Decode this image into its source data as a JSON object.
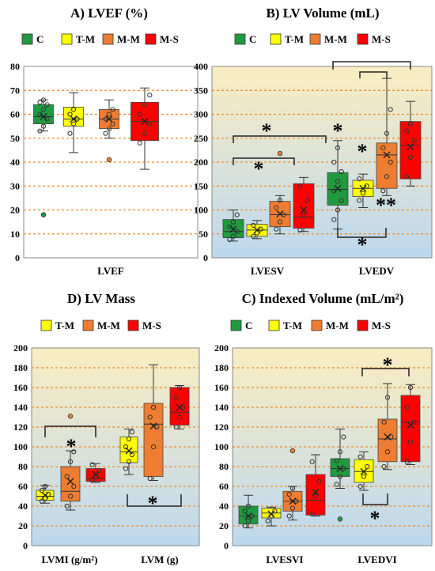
{
  "colors": {
    "C": "#1f9a3f",
    "T-M": "#ffff00",
    "M-M": "#ee7d31",
    "M-S": "#ff0000",
    "gridline": "#f08a24",
    "bracket": "#222222"
  },
  "chart_data": [
    {
      "id": "A",
      "type": "box",
      "title": "A) LVEF (%)",
      "legend": [
        "C",
        "T-M",
        "M-M",
        "M-S"
      ],
      "categories": [
        "LVEF"
      ],
      "ylim": [
        0,
        80
      ],
      "yticks": [
        0,
        10,
        20,
        30,
        40,
        50,
        60,
        70,
        80
      ],
      "background": "white",
      "grid": true,
      "boxes": [
        {
          "cat": 0,
          "group": "C",
          "min": 53,
          "q1": 56,
          "median": 59,
          "q3": 64,
          "max": 66,
          "mean": 59,
          "points": [
            53,
            55,
            58,
            60,
            62,
            64,
            65,
            66
          ],
          "outliers": [
            18
          ]
        },
        {
          "cat": 0,
          "group": "T-M",
          "min": 44,
          "q1": 55,
          "median": 58,
          "q3": 63,
          "max": 69,
          "mean": 58,
          "points": [
            52,
            56,
            58,
            60,
            62
          ],
          "outliers": []
        },
        {
          "cat": 0,
          "group": "M-M",
          "min": 50,
          "q1": 54,
          "median": 58,
          "q3": 62,
          "max": 66,
          "mean": 58,
          "points": [
            52,
            54,
            56,
            58,
            60,
            62
          ],
          "outliers": [
            41
          ]
        },
        {
          "cat": 0,
          "group": "M-S",
          "min": 37,
          "q1": 49,
          "median": 57,
          "q3": 65,
          "max": 71,
          "mean": 57,
          "points": [
            48,
            52,
            56,
            60,
            64,
            68
          ],
          "outliers": []
        }
      ]
    },
    {
      "id": "B",
      "type": "box",
      "title": "B) LV Volume (mL)",
      "legend": [
        "C",
        "T-M",
        "M-M",
        "M-S"
      ],
      "categories": [
        "LVESV",
        "LVEDV"
      ],
      "ylim": [
        0,
        400
      ],
      "yticks": [
        0,
        50,
        100,
        150,
        200,
        250,
        300,
        350,
        400
      ],
      "background": "gradient",
      "grid": true,
      "boxes": [
        {
          "cat": 0,
          "group": "C",
          "min": 35,
          "q1": 42,
          "median": 55,
          "q3": 80,
          "max": 100,
          "mean": 60,
          "points": [
            38,
            45,
            55,
            65,
            75,
            90
          ],
          "outliers": []
        },
        {
          "cat": 0,
          "group": "T-M",
          "min": 40,
          "q1": 45,
          "median": 58,
          "q3": 70,
          "max": 78,
          "mean": 58,
          "points": [
            45,
            52,
            60,
            68
          ],
          "outliers": []
        },
        {
          "cat": 0,
          "group": "M-M",
          "min": 50,
          "q1": 65,
          "median": 90,
          "q3": 118,
          "max": 130,
          "mean": 92,
          "points": [
            60,
            75,
            90,
            105,
            120
          ],
          "outliers": [
            218
          ]
        },
        {
          "cat": 0,
          "group": "M-S",
          "min": 55,
          "q1": 62,
          "median": 85,
          "q3": 155,
          "max": 168,
          "mean": 100,
          "points": [
            58,
            90,
            120,
            150
          ],
          "outliers": []
        },
        {
          "cat": 1,
          "group": "C",
          "min": 60,
          "q1": 110,
          "median": 143,
          "q3": 178,
          "max": 245,
          "mean": 145,
          "points": [
            80,
            100,
            120,
            140,
            160,
            180,
            200,
            230
          ],
          "outliers": []
        },
        {
          "cat": 1,
          "group": "T-M",
          "min": 105,
          "q1": 128,
          "median": 145,
          "q3": 162,
          "max": 175,
          "mean": 145,
          "points": [
            120,
            135,
            150,
            165
          ],
          "outliers": []
        },
        {
          "cat": 1,
          "group": "M-M",
          "min": 130,
          "q1": 145,
          "median": 215,
          "q3": 240,
          "max": 375,
          "mean": 215,
          "points": [
            140,
            170,
            200,
            230,
            260,
            310
          ],
          "outliers": []
        },
        {
          "cat": 1,
          "group": "M-S",
          "min": 150,
          "q1": 165,
          "median": 235,
          "q3": 285,
          "max": 327,
          "mean": 232,
          "points": [
            170,
            210,
            245,
            265,
            280
          ],
          "outliers": []
        }
      ],
      "markers": [
        "*",
        "*",
        "*",
        "*",
        "**",
        "*"
      ]
    },
    {
      "id": "D",
      "type": "box",
      "title": "D) LV Mass",
      "legend": [
        "T-M",
        "M-M",
        "M-S"
      ],
      "categories": [
        "LVMI (g/m²)",
        "LVM (g)"
      ],
      "ylim": [
        0,
        200
      ],
      "yticks": [
        0,
        20,
        40,
        60,
        80,
        100,
        120,
        140,
        160,
        180,
        200
      ],
      "background": "gradient",
      "grid": true,
      "boxes": [
        {
          "cat": 0,
          "group": "T-M",
          "min": 43,
          "q1": 46,
          "median": 50,
          "q3": 56,
          "max": 61,
          "mean": 51,
          "points": [
            45,
            48,
            52,
            56,
            60
          ],
          "outliers": []
        },
        {
          "cat": 0,
          "group": "M-M",
          "min": 36,
          "q1": 45,
          "median": 55,
          "q3": 80,
          "max": 96,
          "mean": 65,
          "points": [
            40,
            50,
            60,
            70,
            85,
            95
          ],
          "outliers": [
            131
          ]
        },
        {
          "cat": 0,
          "group": "M-S",
          "min": 64,
          "q1": 65,
          "median": 68,
          "q3": 78,
          "max": 83,
          "mean": 72,
          "points": [
            66,
            70,
            76,
            82
          ],
          "outliers": []
        },
        {
          "cat": 1,
          "group": "T-M",
          "min": 72,
          "q1": 84,
          "median": 95,
          "q3": 110,
          "max": 118,
          "mean": 96,
          "points": [
            78,
            85,
            92,
            100,
            108,
            115
          ],
          "outliers": []
        },
        {
          "cat": 1,
          "group": "M-M",
          "min": 66,
          "q1": 70,
          "median": 123,
          "q3": 144,
          "max": 183,
          "mean": 121,
          "points": [
            68,
            100,
            120,
            130,
            140
          ],
          "outliers": []
        },
        {
          "cat": 1,
          "group": "M-S",
          "min": 118,
          "q1": 122,
          "median": 135,
          "q3": 160,
          "max": 162,
          "mean": 140,
          "points": [
            120,
            130,
            140,
            150,
            160
          ],
          "outliers": []
        }
      ],
      "markers": [
        "*",
        "*"
      ]
    },
    {
      "id": "C",
      "type": "box",
      "title": "C) Indexed Volume (mL/m²)",
      "legend": [
        "C",
        "T-M",
        "M-M",
        "M-S"
      ],
      "categories": [
        "LVESVI",
        "LVEDVI"
      ],
      "ylim": [
        0,
        200
      ],
      "yticks": [
        0,
        20,
        40,
        60,
        80,
        100,
        120,
        140,
        160,
        180,
        200
      ],
      "background": "gradient",
      "grid": true,
      "boxes": [
        {
          "cat": 0,
          "group": "C",
          "min": 18,
          "q1": 22,
          "median": 30,
          "q3": 40,
          "max": 51,
          "mean": 30,
          "points": [
            20,
            25,
            30,
            35,
            40
          ],
          "outliers": []
        },
        {
          "cat": 0,
          "group": "T-M",
          "min": 20,
          "q1": 28,
          "median": 33,
          "q3": 38,
          "max": 39,
          "mean": 32,
          "points": [
            25,
            30,
            35
          ],
          "outliers": []
        },
        {
          "cat": 0,
          "group": "M-M",
          "min": 26,
          "q1": 35,
          "median": 45,
          "q3": 55,
          "max": 60,
          "mean": 45,
          "points": [
            30,
            38,
            45,
            52,
            58
          ],
          "outliers": [
            96
          ]
        },
        {
          "cat": 0,
          "group": "M-S",
          "min": 30,
          "q1": 31,
          "median": 46,
          "q3": 72,
          "max": 92,
          "mean": 54,
          "points": [
            32,
            50,
            65,
            85
          ],
          "outliers": []
        },
        {
          "cat": 1,
          "group": "C",
          "min": 58,
          "q1": 70,
          "median": 78,
          "q3": 88,
          "max": 118,
          "mean": 78,
          "points": [
            62,
            70,
            78,
            86,
            95,
            110
          ],
          "outliers": [
            27
          ]
        },
        {
          "cat": 1,
          "group": "T-M",
          "min": 56,
          "q1": 64,
          "median": 75,
          "q3": 87,
          "max": 95,
          "mean": 75,
          "points": [
            60,
            70,
            80,
            90
          ],
          "outliers": []
        },
        {
          "cat": 1,
          "group": "M-M",
          "min": 77,
          "q1": 85,
          "median": 108,
          "q3": 128,
          "max": 164,
          "mean": 110,
          "points": [
            80,
            95,
            110,
            125,
            150
          ],
          "outliers": []
        },
        {
          "cat": 1,
          "group": "M-S",
          "min": 82,
          "q1": 85,
          "median": 125,
          "q3": 152,
          "max": 163,
          "mean": 122,
          "points": [
            85,
            105,
            125,
            140,
            160
          ],
          "outliers": []
        }
      ],
      "markers": [
        "*",
        "*"
      ]
    }
  ]
}
